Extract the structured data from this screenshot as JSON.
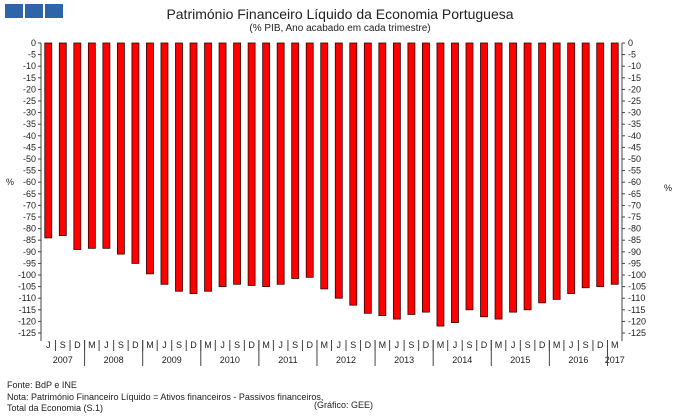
{
  "header": {
    "title": "Património Financeiro Líquido da Economia Portuguesa",
    "subtitle": "(% PIB, Ano acabado em cada trimestre)"
  },
  "chart_data": {
    "type": "bar",
    "title": "Património Financeiro Líquido da Economia Portuguesa",
    "subtitle": "(% PIB, Ano acabado em cada trimestre)",
    "ylabel": "%",
    "ylim": [
      -125,
      0
    ],
    "yticks": [
      0,
      -5,
      -10,
      -15,
      -20,
      -25,
      -30,
      -35,
      -40,
      -45,
      -50,
      -55,
      -60,
      -65,
      -70,
      -75,
      -80,
      -85,
      -90,
      -95,
      -100,
      -105,
      -110,
      -115,
      -120,
      -125
    ],
    "categories": [
      "J",
      "S",
      "D",
      "M",
      "J",
      "S",
      "D",
      "M",
      "J",
      "S",
      "D",
      "M",
      "J",
      "S",
      "D",
      "M",
      "J",
      "S",
      "D",
      "M",
      "J",
      "S",
      "D",
      "M",
      "J",
      "S",
      "D",
      "M",
      "J",
      "S",
      "D",
      "M",
      "J",
      "S",
      "D",
      "M",
      "J",
      "S",
      "D",
      "M"
    ],
    "years": [
      {
        "label": "2007",
        "count": 3
      },
      {
        "label": "2008",
        "count": 4
      },
      {
        "label": "2009",
        "count": 4
      },
      {
        "label": "2010",
        "count": 4
      },
      {
        "label": "2011",
        "count": 4
      },
      {
        "label": "2012",
        "count": 4
      },
      {
        "label": "2013",
        "count": 4
      },
      {
        "label": "2014",
        "count": 4
      },
      {
        "label": "2015",
        "count": 4
      },
      {
        "label": "2016",
        "count": 4
      },
      {
        "label": "2017",
        "count": 1
      }
    ],
    "values": [
      -84,
      -83,
      -89,
      -88.5,
      -88.5,
      -91,
      -95,
      -99.5,
      -104,
      -107,
      -108,
      -107,
      -105,
      -104,
      -104.5,
      -105,
      -104,
      -101.5,
      -101,
      -106,
      -110,
      -113,
      -116.5,
      -117.5,
      -119,
      -117,
      -116,
      -122,
      -120.5,
      -115,
      -118,
      -119,
      -116,
      -115,
      -112,
      -110.5,
      -108,
      -105.5,
      -105,
      -104
    ],
    "bar_color": "#ff0000"
  },
  "footer": {
    "source": "Fonte: BdP e INE",
    "note": "Nota: Património Financeiro Líquido = Ativos financeiros - Passivos financeiros,",
    "note2": "Total da Economia (S.1)",
    "credit": "(Gráfico: GEE)"
  }
}
